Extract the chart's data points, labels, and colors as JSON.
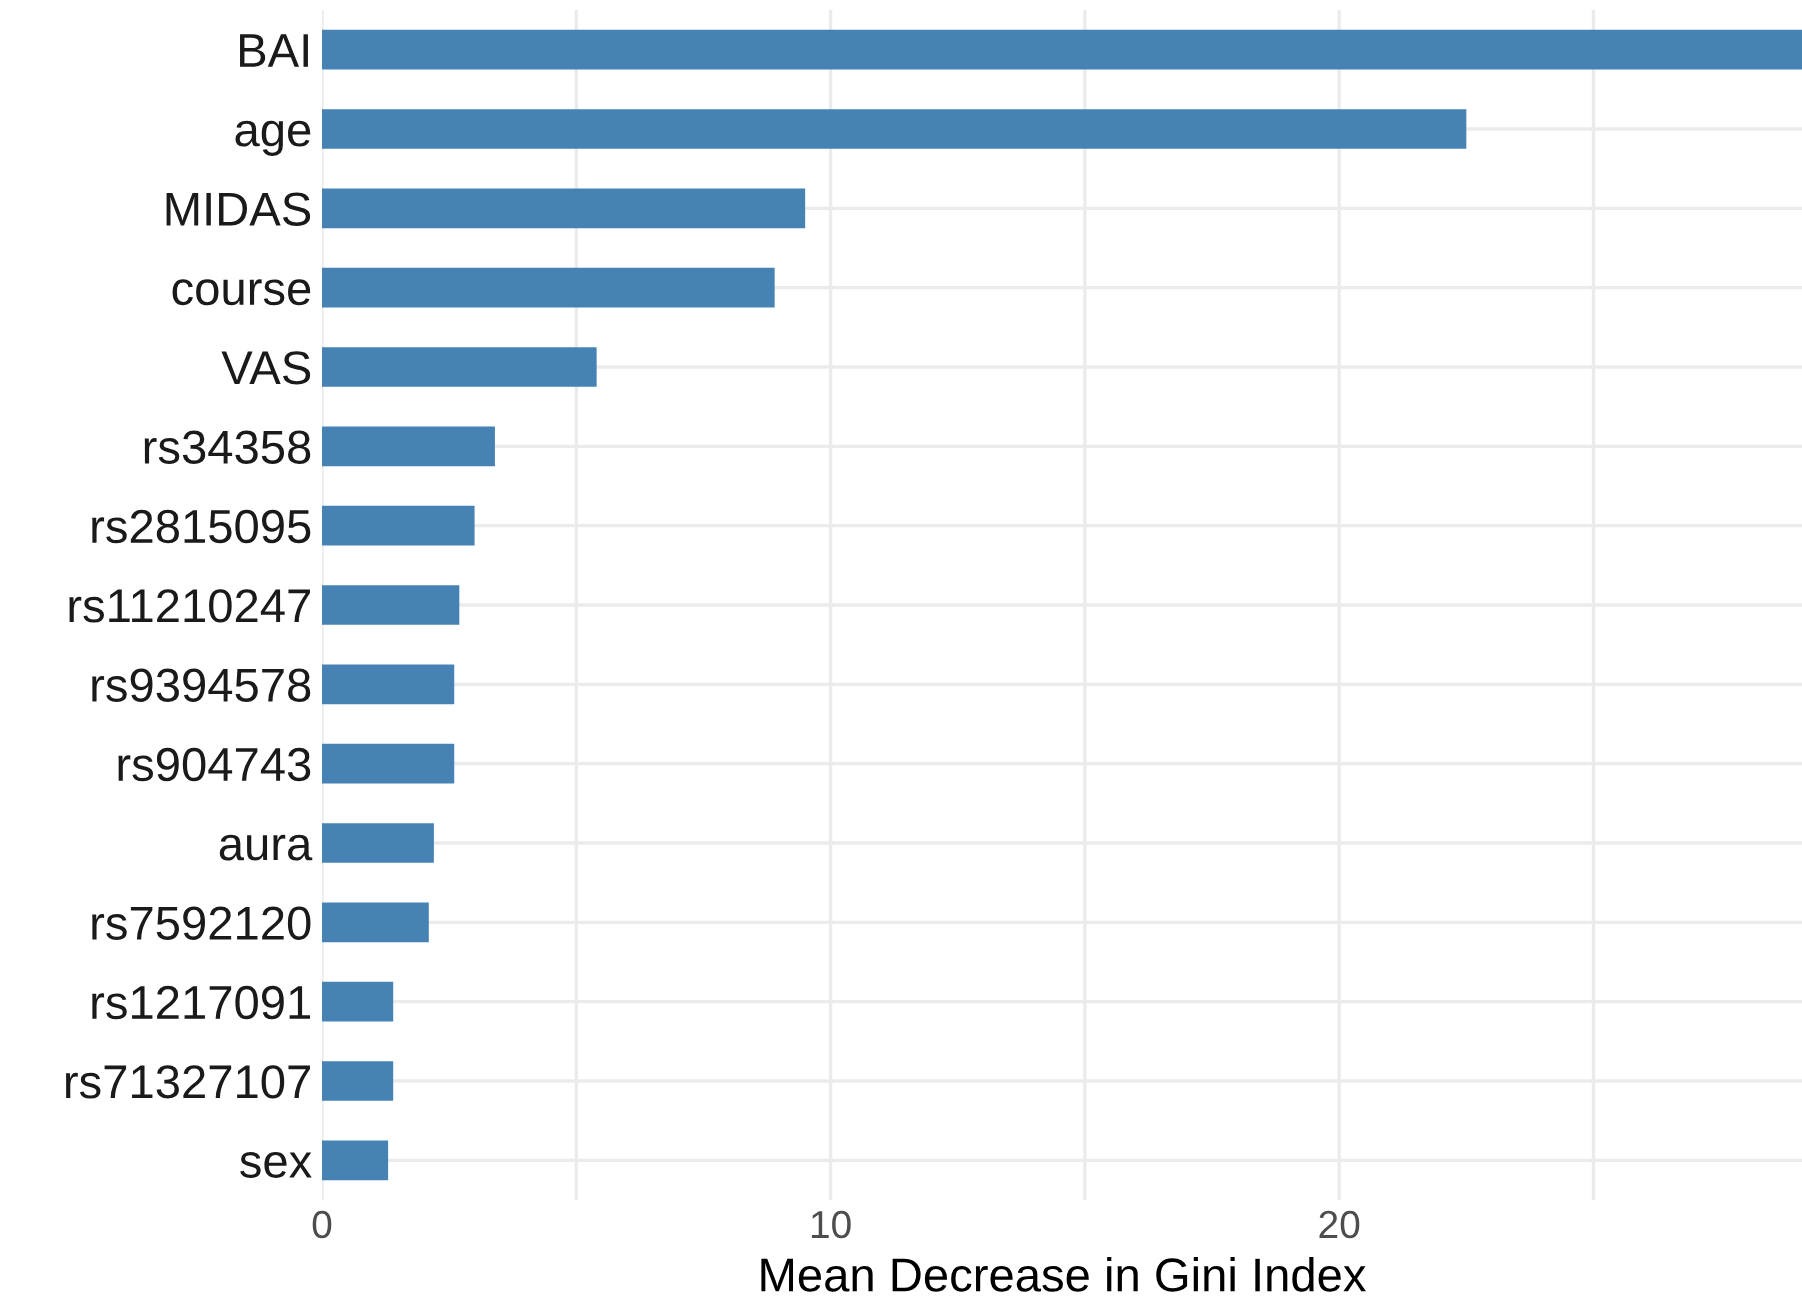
{
  "chart_data": {
    "type": "bar",
    "orientation": "horizontal",
    "xlabel": "Mean Decrease in Gini Index",
    "categories": [
      "BAI",
      "age",
      "MIDAS",
      "course",
      "VAS",
      "rs34358",
      "rs2815095",
      "rs11210247",
      "rs9394578",
      "rs904743",
      "aura",
      "rs7592120",
      "rs1217091",
      "rs71327107",
      "sex"
    ],
    "values": [
      29.1,
      22.5,
      9.5,
      8.9,
      5.4,
      3.4,
      3.0,
      2.7,
      2.6,
      2.6,
      2.2,
      2.1,
      1.4,
      1.4,
      1.3
    ],
    "color": "#4682b4",
    "xlim": [
      0,
      29.1
    ],
    "xticks": [
      0,
      {
        "value": 5,
        "label": null
      },
      10,
      {
        "value": 15,
        "label": null
      },
      20,
      {
        "value": 25,
        "label": null
      }
    ],
    "grid": true
  }
}
